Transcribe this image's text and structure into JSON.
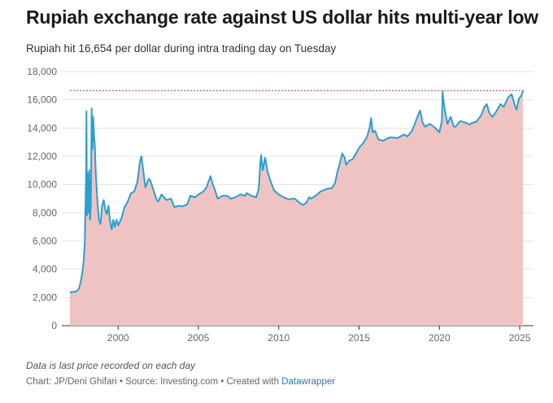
{
  "header": {
    "title": "Rupiah exchange rate against US dollar hits multi-year low",
    "subtitle": "Rupiah hit 16,654 per dollar during intra trading day on Tuesday"
  },
  "footer": {
    "note": "Data is last price recorded on each day",
    "credit": "Chart: JP/Deni Ghifari • Source: Investing.com • Created with ",
    "tool_link": "Datawrapper"
  },
  "colors": {
    "line": "#2a9fd0",
    "area": "#efc0c0",
    "reference_line": "#e04040",
    "grid": "#e3e3e3"
  },
  "chart_data": {
    "type": "area",
    "title": "Rupiah exchange rate against US dollar hits multi-year low",
    "xlabel": "",
    "ylabel": "",
    "xlim": [
      1997,
      2025.3
    ],
    "ylim": [
      0,
      18000
    ],
    "y_ticks": [
      0,
      2000,
      4000,
      6000,
      8000,
      10000,
      12000,
      14000,
      16000,
      18000
    ],
    "y_tick_labels": [
      "0",
      "2,000",
      "4,000",
      "6,000",
      "8,000",
      "10,000",
      "12,000",
      "14,000",
      "16,000",
      "18,000"
    ],
    "x_ticks": [
      2000,
      2005,
      2010,
      2015,
      2020,
      2025
    ],
    "x_tick_labels": [
      "2000",
      "2005",
      "2010",
      "2015",
      "2020",
      "2025"
    ],
    "grid": "horizontal",
    "reference_line": {
      "y": 16654,
      "style": "dotted"
    },
    "series": [
      {
        "points": [
          [
            1997.0,
            2360
          ],
          [
            1997.4,
            2430
          ],
          [
            1997.55,
            2600
          ],
          [
            1997.65,
            3000
          ],
          [
            1997.75,
            3600
          ],
          [
            1997.85,
            4500
          ],
          [
            1997.92,
            5800
          ],
          [
            1998.0,
            10500
          ],
          [
            1998.03,
            15200
          ],
          [
            1998.06,
            7800
          ],
          [
            1998.1,
            10800
          ],
          [
            1998.15,
            8000
          ],
          [
            1998.2,
            11000
          ],
          [
            1998.25,
            7500
          ],
          [
            1998.3,
            8500
          ],
          [
            1998.35,
            15400
          ],
          [
            1998.4,
            12500
          ],
          [
            1998.45,
            14800
          ],
          [
            1998.5,
            13500
          ],
          [
            1998.55,
            12800
          ],
          [
            1998.6,
            11000
          ],
          [
            1998.7,
            9000
          ],
          [
            1998.8,
            7500
          ],
          [
            1998.9,
            7200
          ],
          [
            1999.0,
            8500
          ],
          [
            1999.1,
            8900
          ],
          [
            1999.2,
            8200
          ],
          [
            1999.3,
            7900
          ],
          [
            1999.4,
            8500
          ],
          [
            1999.5,
            7400
          ],
          [
            1999.6,
            6800
          ],
          [
            1999.7,
            7500
          ],
          [
            1999.8,
            7000
          ],
          [
            1999.9,
            7500
          ],
          [
            2000.0,
            7100
          ],
          [
            2000.2,
            7600
          ],
          [
            2000.4,
            8400
          ],
          [
            2000.6,
            8800
          ],
          [
            2000.8,
            9400
          ],
          [
            2001.0,
            9500
          ],
          [
            2001.2,
            10200
          ],
          [
            2001.35,
            11600
          ],
          [
            2001.45,
            12000
          ],
          [
            2001.55,
            11100
          ],
          [
            2001.7,
            9800
          ],
          [
            2001.9,
            10400
          ],
          [
            2002.0,
            10300
          ],
          [
            2002.2,
            9600
          ],
          [
            2002.4,
            8900
          ],
          [
            2002.5,
            8800
          ],
          [
            2002.7,
            9300
          ],
          [
            2003.0,
            8900
          ],
          [
            2003.3,
            9000
          ],
          [
            2003.5,
            8400
          ],
          [
            2003.8,
            8500
          ],
          [
            2004.0,
            8450
          ],
          [
            2004.3,
            8600
          ],
          [
            2004.5,
            9200
          ],
          [
            2004.8,
            9100
          ],
          [
            2005.0,
            9300
          ],
          [
            2005.3,
            9500
          ],
          [
            2005.5,
            9800
          ],
          [
            2005.75,
            10600
          ],
          [
            2005.9,
            10000
          ],
          [
            2006.0,
            9700
          ],
          [
            2006.2,
            9000
          ],
          [
            2006.5,
            9200
          ],
          [
            2006.8,
            9200
          ],
          [
            2007.0,
            9000
          ],
          [
            2007.3,
            9100
          ],
          [
            2007.6,
            9300
          ],
          [
            2007.9,
            9200
          ],
          [
            2008.0,
            9400
          ],
          [
            2008.3,
            9200
          ],
          [
            2008.6,
            9100
          ],
          [
            2008.75,
            9700
          ],
          [
            2008.85,
            11500
          ],
          [
            2008.9,
            12100
          ],
          [
            2009.0,
            11000
          ],
          [
            2009.15,
            11900
          ],
          [
            2009.3,
            10900
          ],
          [
            2009.5,
            10200
          ],
          [
            2009.7,
            9600
          ],
          [
            2009.9,
            9400
          ],
          [
            2010.0,
            9300
          ],
          [
            2010.3,
            9100
          ],
          [
            2010.6,
            8950
          ],
          [
            2010.9,
            9000
          ],
          [
            2011.0,
            9000
          ],
          [
            2011.3,
            8700
          ],
          [
            2011.5,
            8550
          ],
          [
            2011.7,
            8700
          ],
          [
            2011.9,
            9100
          ],
          [
            2012.0,
            9000
          ],
          [
            2012.3,
            9200
          ],
          [
            2012.6,
            9500
          ],
          [
            2012.9,
            9650
          ],
          [
            2013.0,
            9700
          ],
          [
            2013.3,
            9750
          ],
          [
            2013.5,
            10100
          ],
          [
            2013.65,
            10900
          ],
          [
            2013.8,
            11500
          ],
          [
            2013.95,
            12200
          ],
          [
            2014.1,
            11900
          ],
          [
            2014.2,
            11400
          ],
          [
            2014.4,
            11700
          ],
          [
            2014.6,
            11800
          ],
          [
            2014.9,
            12400
          ],
          [
            2015.0,
            12600
          ],
          [
            2015.3,
            13000
          ],
          [
            2015.5,
            13400
          ],
          [
            2015.65,
            14000
          ],
          [
            2015.75,
            14700
          ],
          [
            2015.85,
            13700
          ],
          [
            2016.0,
            13800
          ],
          [
            2016.2,
            13200
          ],
          [
            2016.5,
            13100
          ],
          [
            2016.8,
            13300
          ],
          [
            2017.0,
            13350
          ],
          [
            2017.4,
            13300
          ],
          [
            2017.8,
            13550
          ],
          [
            2018.0,
            13400
          ],
          [
            2018.3,
            13800
          ],
          [
            2018.5,
            14400
          ],
          [
            2018.7,
            15000
          ],
          [
            2018.8,
            15250
          ],
          [
            2018.95,
            14400
          ],
          [
            2019.1,
            14100
          ],
          [
            2019.4,
            14300
          ],
          [
            2019.7,
            14050
          ],
          [
            2020.0,
            13700
          ],
          [
            2020.15,
            14500
          ],
          [
            2020.2,
            16600
          ],
          [
            2020.25,
            16000
          ],
          [
            2020.35,
            15200
          ],
          [
            2020.5,
            14300
          ],
          [
            2020.7,
            14800
          ],
          [
            2020.9,
            14100
          ],
          [
            2021.0,
            14100
          ],
          [
            2021.3,
            14500
          ],
          [
            2021.6,
            14400
          ],
          [
            2021.9,
            14250
          ],
          [
            2022.0,
            14350
          ],
          [
            2022.3,
            14450
          ],
          [
            2022.6,
            14900
          ],
          [
            2022.8,
            15500
          ],
          [
            2022.95,
            15700
          ],
          [
            2023.1,
            15100
          ],
          [
            2023.3,
            14800
          ],
          [
            2023.5,
            15100
          ],
          [
            2023.8,
            15700
          ],
          [
            2024.0,
            15500
          ],
          [
            2024.3,
            16200
          ],
          [
            2024.5,
            16400
          ],
          [
            2024.7,
            15600
          ],
          [
            2024.8,
            15300
          ],
          [
            2024.95,
            16100
          ],
          [
            2025.1,
            16300
          ],
          [
            2025.2,
            16654
          ]
        ]
      }
    ]
  }
}
